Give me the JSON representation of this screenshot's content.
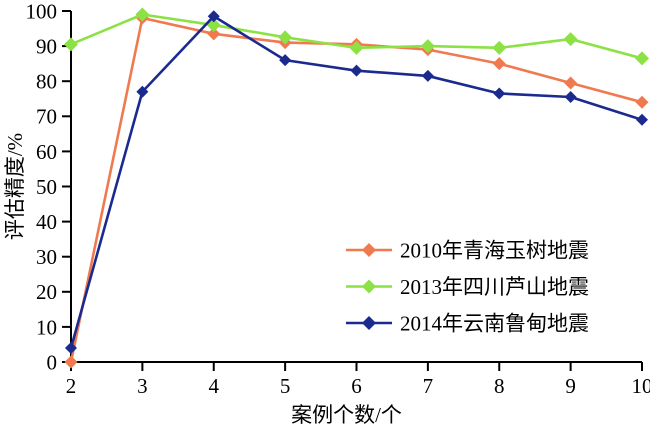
{
  "chart_data": {
    "type": "line",
    "title": "",
    "xlabel": "案例个数/个",
    "ylabel": "评估精度/%",
    "x": [
      2,
      3,
      4,
      5,
      6,
      7,
      8,
      9,
      10
    ],
    "xlim": [
      2,
      10
    ],
    "ylim": [
      0,
      100
    ],
    "xticks": [
      2,
      3,
      4,
      5,
      6,
      7,
      8,
      9,
      10
    ],
    "yticks": [
      0,
      10,
      20,
      30,
      40,
      50,
      60,
      70,
      80,
      90,
      100
    ],
    "grid": false,
    "legend_position": "inside-right-middle",
    "marker_shape": "diamond",
    "axis_color": "#000000",
    "background_color": "#ffffff",
    "series": [
      {
        "name": "2010年青海玉树地震",
        "color": "#f07a4f",
        "values": [
          0,
          98,
          93.5,
          91,
          90.5,
          89,
          85,
          79.5,
          74
        ]
      },
      {
        "name": "2013年四川芦山地震",
        "color": "#8ce144",
        "values": [
          90.5,
          99,
          96,
          92.5,
          89.5,
          90,
          89.5,
          92,
          86.5
        ]
      },
      {
        "name": "2014年云南鲁甸地震",
        "color": "#1a2a8f",
        "values": [
          4,
          77,
          98.5,
          86,
          83,
          81.5,
          76.5,
          75.5,
          69
        ]
      }
    ]
  }
}
